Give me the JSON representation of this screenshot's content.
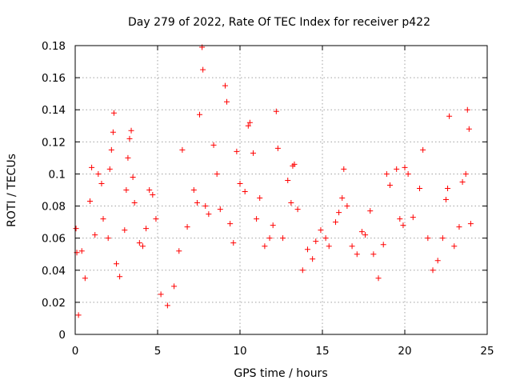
{
  "chart_data": {
    "type": "scatter",
    "title": "Day 279 of 2022, Rate Of TEC Index for receiver p422",
    "xlabel": "GPS time / hours",
    "ylabel": "ROTI / TECUs",
    "xlim": [
      0,
      25
    ],
    "ylim": [
      0,
      0.18
    ],
    "xticks": [
      "0",
      "5",
      "10",
      "15",
      "20",
      "25"
    ],
    "yticks": [
      "0",
      "0.02",
      "0.04",
      "0.06",
      "0.08",
      "0.1",
      "0.12",
      "0.14",
      "0.16",
      "0.18"
    ],
    "grid": true,
    "marker": "plus",
    "color": "#ff0000",
    "series": [
      {
        "points": [
          [
            0.05,
            0.066
          ],
          [
            0.1,
            0.051
          ],
          [
            0.2,
            0.012
          ],
          [
            0.4,
            0.052
          ],
          [
            0.6,
            0.035
          ],
          [
            0.9,
            0.083
          ],
          [
            1.0,
            0.104
          ],
          [
            1.2,
            0.062
          ],
          [
            1.4,
            0.1
          ],
          [
            1.6,
            0.094
          ],
          [
            1.7,
            0.072
          ],
          [
            2.0,
            0.06
          ],
          [
            2.1,
            0.103
          ],
          [
            2.2,
            0.115
          ],
          [
            2.3,
            0.126
          ],
          [
            2.35,
            0.138
          ],
          [
            2.5,
            0.044
          ],
          [
            2.7,
            0.036
          ],
          [
            3.0,
            0.065
          ],
          [
            3.1,
            0.09
          ],
          [
            3.2,
            0.11
          ],
          [
            3.3,
            0.122
          ],
          [
            3.4,
            0.127
          ],
          [
            3.5,
            0.098
          ],
          [
            3.6,
            0.082
          ],
          [
            3.9,
            0.057
          ],
          [
            4.1,
            0.055
          ],
          [
            4.3,
            0.066
          ],
          [
            4.5,
            0.09
          ],
          [
            4.7,
            0.087
          ],
          [
            4.9,
            0.072
          ],
          [
            5.2,
            0.025
          ],
          [
            5.6,
            0.018
          ],
          [
            6.0,
            0.03
          ],
          [
            6.3,
            0.052
          ],
          [
            6.5,
            0.115
          ],
          [
            6.8,
            0.067
          ],
          [
            7.2,
            0.09
          ],
          [
            7.4,
            0.082
          ],
          [
            7.55,
            0.137
          ],
          [
            7.7,
            0.179
          ],
          [
            7.75,
            0.165
          ],
          [
            7.9,
            0.08
          ],
          [
            8.1,
            0.075
          ],
          [
            8.4,
            0.118
          ],
          [
            8.6,
            0.1
          ],
          [
            8.8,
            0.078
          ],
          [
            9.1,
            0.155
          ],
          [
            9.2,
            0.145
          ],
          [
            9.4,
            0.069
          ],
          [
            9.6,
            0.057
          ],
          [
            9.8,
            0.114
          ],
          [
            10.0,
            0.094
          ],
          [
            10.3,
            0.089
          ],
          [
            10.5,
            0.13
          ],
          [
            10.6,
            0.132
          ],
          [
            10.8,
            0.113
          ],
          [
            11.0,
            0.072
          ],
          [
            11.2,
            0.085
          ],
          [
            11.5,
            0.055
          ],
          [
            11.8,
            0.06
          ],
          [
            12.0,
            0.068
          ],
          [
            12.2,
            0.139
          ],
          [
            12.3,
            0.116
          ],
          [
            12.6,
            0.06
          ],
          [
            12.9,
            0.096
          ],
          [
            13.1,
            0.082
          ],
          [
            13.2,
            0.105
          ],
          [
            13.3,
            0.106
          ],
          [
            13.5,
            0.078
          ],
          [
            13.8,
            0.04
          ],
          [
            14.1,
            0.053
          ],
          [
            14.4,
            0.047
          ],
          [
            14.6,
            0.058
          ],
          [
            14.9,
            0.065
          ],
          [
            15.2,
            0.06
          ],
          [
            15.4,
            0.055
          ],
          [
            15.8,
            0.07
          ],
          [
            16.0,
            0.076
          ],
          [
            16.2,
            0.085
          ],
          [
            16.3,
            0.103
          ],
          [
            16.5,
            0.08
          ],
          [
            16.8,
            0.055
          ],
          [
            17.1,
            0.05
          ],
          [
            17.4,
            0.064
          ],
          [
            17.6,
            0.062
          ],
          [
            17.9,
            0.077
          ],
          [
            18.1,
            0.05
          ],
          [
            18.4,
            0.035
          ],
          [
            18.7,
            0.056
          ],
          [
            18.9,
            0.1
          ],
          [
            19.1,
            0.093
          ],
          [
            19.5,
            0.103
          ],
          [
            19.7,
            0.072
          ],
          [
            19.9,
            0.068
          ],
          [
            20.0,
            0.104
          ],
          [
            20.2,
            0.1
          ],
          [
            20.5,
            0.073
          ],
          [
            20.9,
            0.091
          ],
          [
            21.1,
            0.115
          ],
          [
            21.4,
            0.06
          ],
          [
            21.7,
            0.04
          ],
          [
            22.0,
            0.046
          ],
          [
            22.3,
            0.06
          ],
          [
            22.5,
            0.084
          ],
          [
            22.6,
            0.091
          ],
          [
            22.7,
            0.136
          ],
          [
            23.0,
            0.055
          ],
          [
            23.3,
            0.067
          ],
          [
            23.5,
            0.095
          ],
          [
            23.7,
            0.1
          ],
          [
            23.8,
            0.14
          ],
          [
            23.9,
            0.128
          ],
          [
            24.0,
            0.069
          ]
        ]
      }
    ]
  }
}
